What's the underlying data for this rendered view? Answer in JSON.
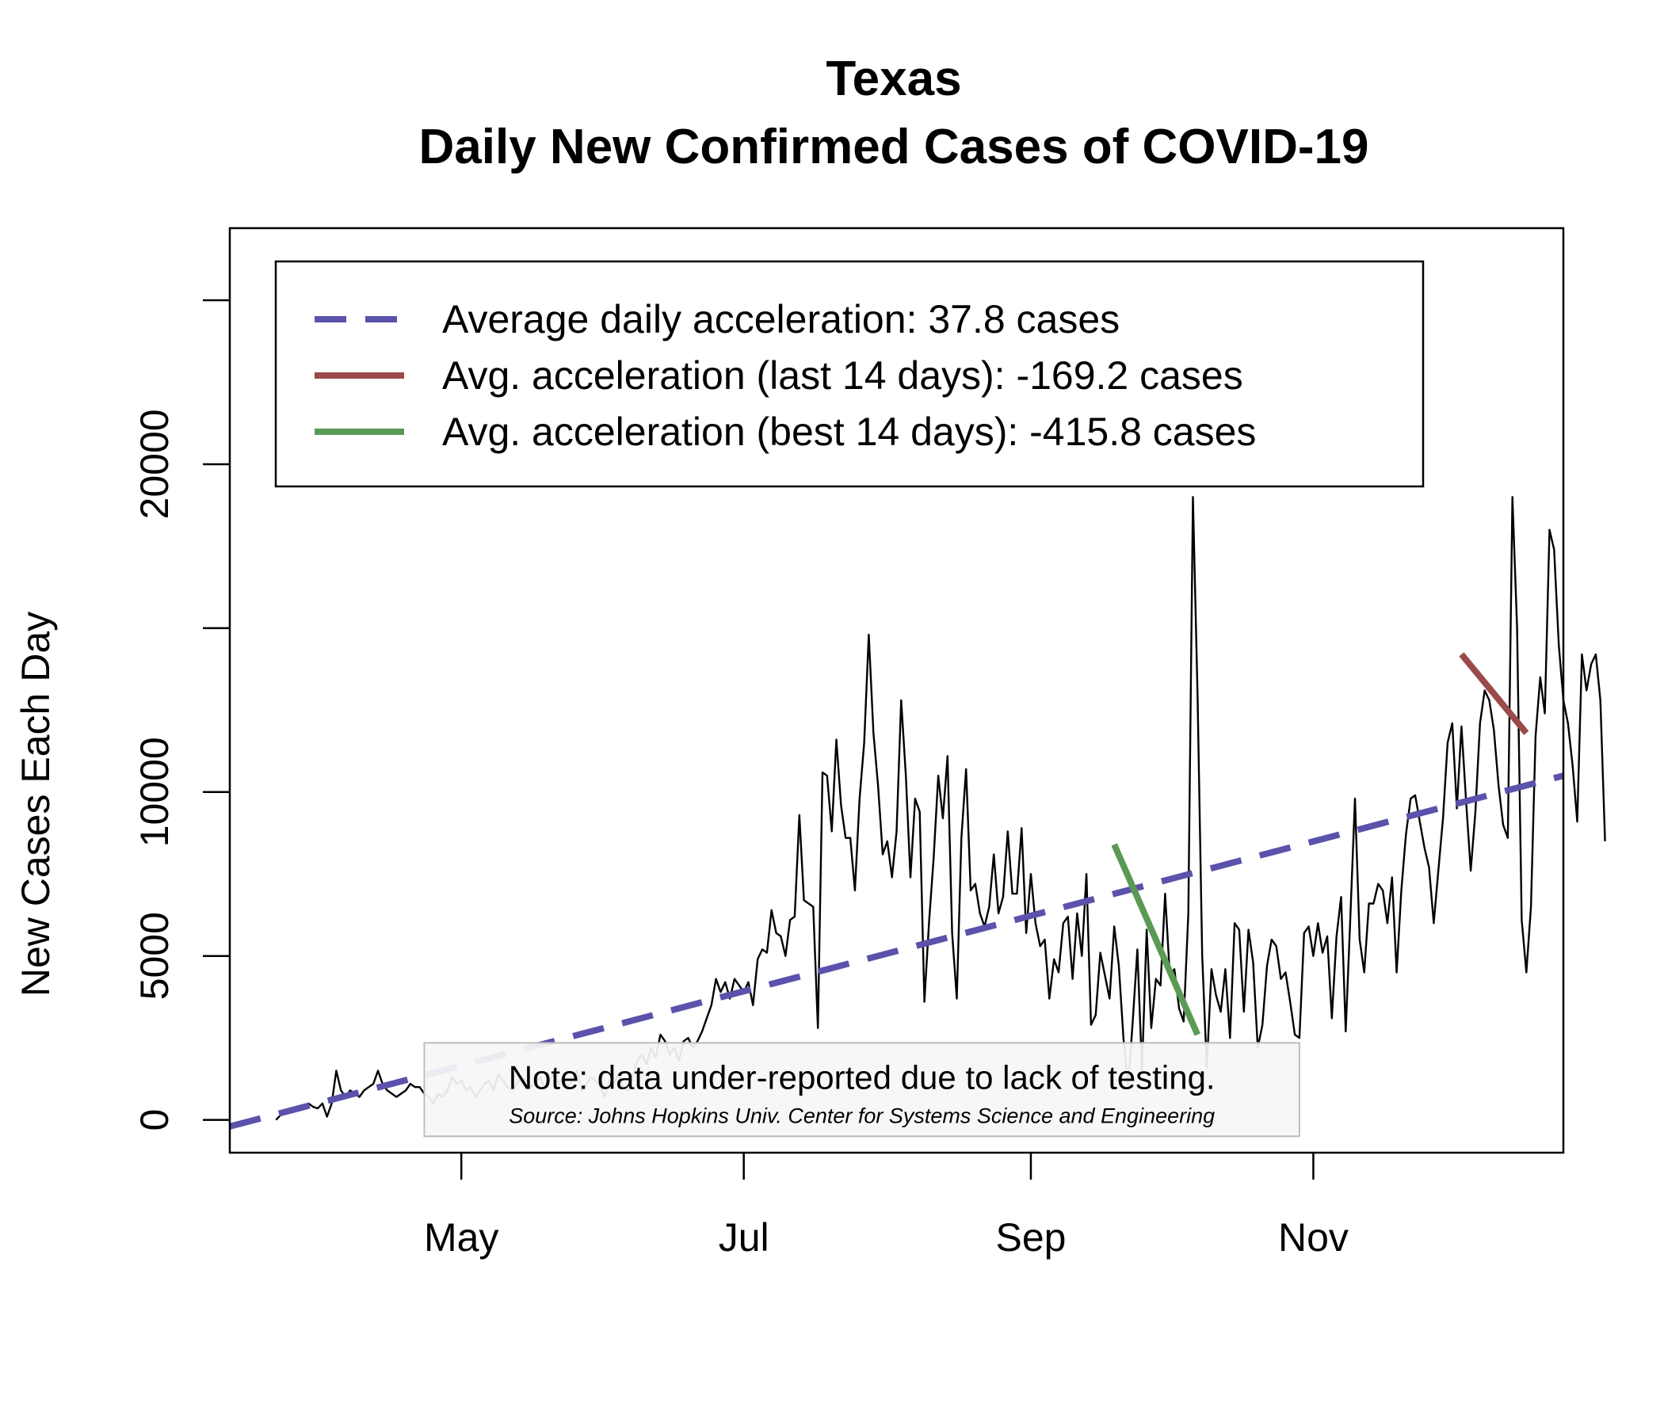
{
  "chart_data": {
    "type": "line",
    "title": "Texas",
    "subtitle": "Daily New Confirmed Cases of COVID-19",
    "xlabel": "",
    "ylabel": "New Cases Each Day",
    "x_ticks": [
      {
        "date": "2020-05-01",
        "label": "May"
      },
      {
        "date": "2020-07-01",
        "label": "Jul"
      },
      {
        "date": "2020-09-01",
        "label": "Sep"
      },
      {
        "date": "2020-11-01",
        "label": "Nov"
      }
    ],
    "y_ticks": [
      0,
      5000,
      10000,
      15000,
      20000,
      25000
    ],
    "y_tick_labels": [
      "0",
      "5000",
      "10000",
      "",
      "20000",
      ""
    ],
    "xlim": [
      "2020-03-12",
      "2020-12-25"
    ],
    "ylim": [
      -1000,
      27200
    ],
    "grid": false,
    "legend_position": "top-left",
    "series": [
      {
        "name": "",
        "kind": "daily_cases",
        "color": "#000000",
        "x_start": "2020-03-22",
        "x_step_days": 1,
        "values": [
          0,
          150,
          250,
          300,
          350,
          300,
          450,
          500,
          400,
          350,
          500,
          100,
          500,
          1500,
          900,
          700,
          900,
          800,
          700,
          900,
          1000,
          1100,
          1500,
          1100,
          900,
          800,
          700,
          800,
          900,
          1100,
          1000,
          1000,
          800,
          700,
          500,
          800,
          700,
          900,
          1300,
          1100,
          1200,
          900,
          1000,
          700,
          900,
          1100,
          1200,
          900,
          1400,
          1200,
          1000,
          900,
          1100,
          1300,
          1200,
          1000,
          1100,
          1300,
          1000,
          1200,
          1400,
          1100,
          1300,
          1000,
          1200,
          1500,
          900,
          1100,
          1300,
          1200,
          1000,
          700,
          1200,
          1100,
          1400,
          1000,
          900,
          1300,
          1800,
          2000,
          1700,
          2200,
          1900,
          2600,
          2400,
          2000,
          2200,
          1800,
          2400,
          2500,
          2200,
          2400,
          2700,
          3100,
          3500,
          4300,
          3900,
          4200,
          3700,
          4300,
          4100,
          3900,
          4200,
          3500,
          4900,
          5200,
          5100,
          6400,
          5700,
          5600,
          5000,
          6100,
          6200,
          9300,
          6700,
          6600,
          6500,
          2800,
          10600,
          10500,
          8800,
          11600,
          9600,
          8600,
          8600,
          7000,
          9800,
          11500,
          14800,
          11800,
          10200,
          8100,
          8500,
          7400,
          8800,
          12800,
          10500,
          7400,
          9800,
          9400,
          3600,
          6000,
          8000,
          10500,
          9200,
          11100,
          5700,
          3700,
          8600,
          10700,
          7000,
          7200,
          6300,
          5900,
          6500,
          8100,
          6300,
          6800,
          8800,
          6900,
          6900,
          8900,
          5700,
          7500,
          6000,
          5300,
          5500,
          3700,
          4900,
          4500,
          6000,
          6200,
          4300,
          6300,
          5000,
          7500,
          2900,
          3200,
          5100,
          4400,
          3700,
          5900,
          4700,
          2500,
          1000,
          3000,
          5200,
          1500,
          5800,
          2800,
          4300,
          4100,
          6900,
          4400,
          4600,
          3400,
          3000,
          6300,
          19000,
          13000,
          5000,
          1600,
          4600,
          3800,
          3300,
          4600,
          2500,
          6000,
          5800,
          3300,
          5800,
          4800,
          2200,
          2900,
          4700,
          5500,
          5300,
          4300,
          4500,
          3600,
          2600,
          2500,
          5700,
          5900,
          5000,
          6000,
          5100,
          5600,
          3100,
          5600,
          6800,
          2700,
          6200,
          9800,
          5500,
          4500,
          6600,
          6600,
          7200,
          7000,
          6000,
          7400,
          4500,
          7000,
          8700,
          9800,
          9900,
          9100,
          8300,
          7700,
          6000,
          7600,
          9200,
          11500,
          12100,
          9500,
          12000,
          9700,
          7600,
          9400,
          12100,
          13100,
          12800,
          11900,
          10200,
          9000,
          8600,
          19000,
          15000,
          6100,
          4500,
          6500,
          11700,
          13500,
          12400,
          18000,
          17400,
          14500,
          12800,
          12100,
          10800,
          9100,
          14200,
          13100,
          13900,
          14200,
          12800,
          8500
        ]
      }
    ],
    "trend_lines": [
      {
        "name": "Average daily acceleration: 37.8 cases",
        "color": "#5a52ab",
        "dash": true,
        "x": [
          "2020-03-12",
          "2020-12-25"
        ],
        "y": [
          -200,
          10500
        ]
      },
      {
        "name": "Avg. acceleration (last 14 days): -169.2 cases",
        "color": "#9a4a4a",
        "dash": false,
        "x": [
          "2020-12-03",
          "2020-12-17"
        ],
        "y": [
          14200,
          11800
        ]
      },
      {
        "name": "Avg. acceleration (best 14 days): -415.8 cases",
        "color": "#5a9a55",
        "dash": false,
        "x": [
          "2020-09-19",
          "2020-10-07"
        ],
        "y": [
          8400,
          2600
        ]
      }
    ],
    "note_box": {
      "text": "Note: data under-reported due to lack of testing.",
      "source": "Source: Johns Hopkins Univ. Center for Systems Science and Engineering",
      "x": [
        "2020-04-23",
        "2020-10-29"
      ],
      "y": [
        -500,
        2350
      ]
    }
  }
}
